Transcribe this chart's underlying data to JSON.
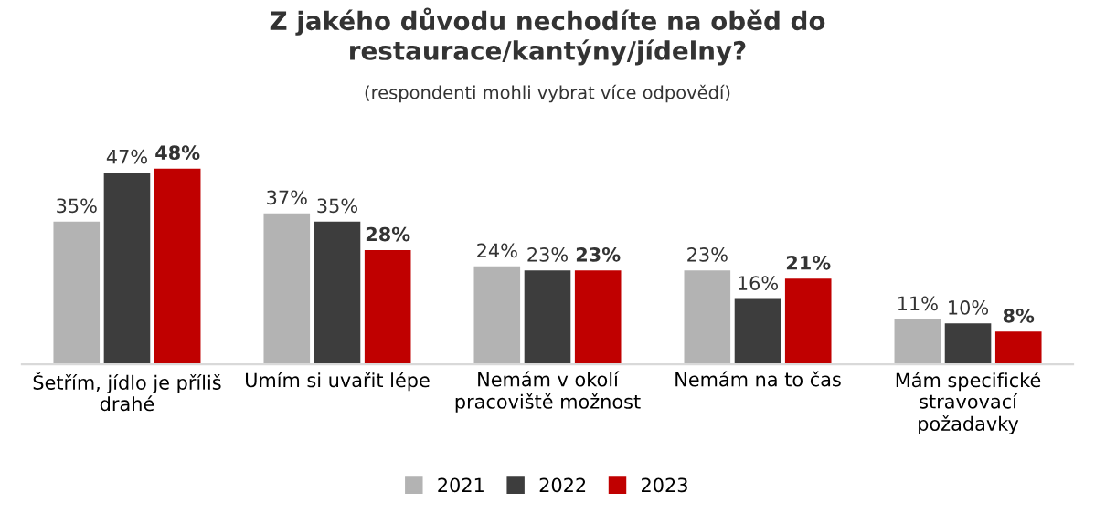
{
  "chart_data": {
    "type": "bar",
    "title": "Z jakého důvodu nechodíte na oběd do\nrestaurace/kantýny/jídelny?",
    "subtitle": "(respondenti mohli vybrat více odpovědí)",
    "categories": [
      "Šetřím, jídlo je příliš\ndrahé",
      "Umím si uvařit lépe",
      "Nemám v okolí\npracoviště možnost",
      "Nemám na to čas",
      "Mám specifické\nstravovací\npožadavky"
    ],
    "series": [
      {
        "name": "2021",
        "color": "#b3b3b3",
        "values": [
          35,
          37,
          24,
          23,
          11
        ],
        "value_labels": [
          "35%",
          "37%",
          "24%",
          "23%",
          "11%"
        ]
      },
      {
        "name": "2022",
        "color": "#3d3d3d",
        "values": [
          47,
          35,
          23,
          16,
          10
        ],
        "value_labels": [
          "47%",
          "35%",
          "23%",
          "16%",
          "10%"
        ]
      },
      {
        "name": "2023",
        "color": "#c00000",
        "values": [
          48,
          28,
          23,
          21,
          8
        ],
        "value_labels": [
          "48%",
          "28%",
          "23%",
          "21%",
          "8%"
        ]
      }
    ],
    "legend": "bottom",
    "grid": false
  }
}
